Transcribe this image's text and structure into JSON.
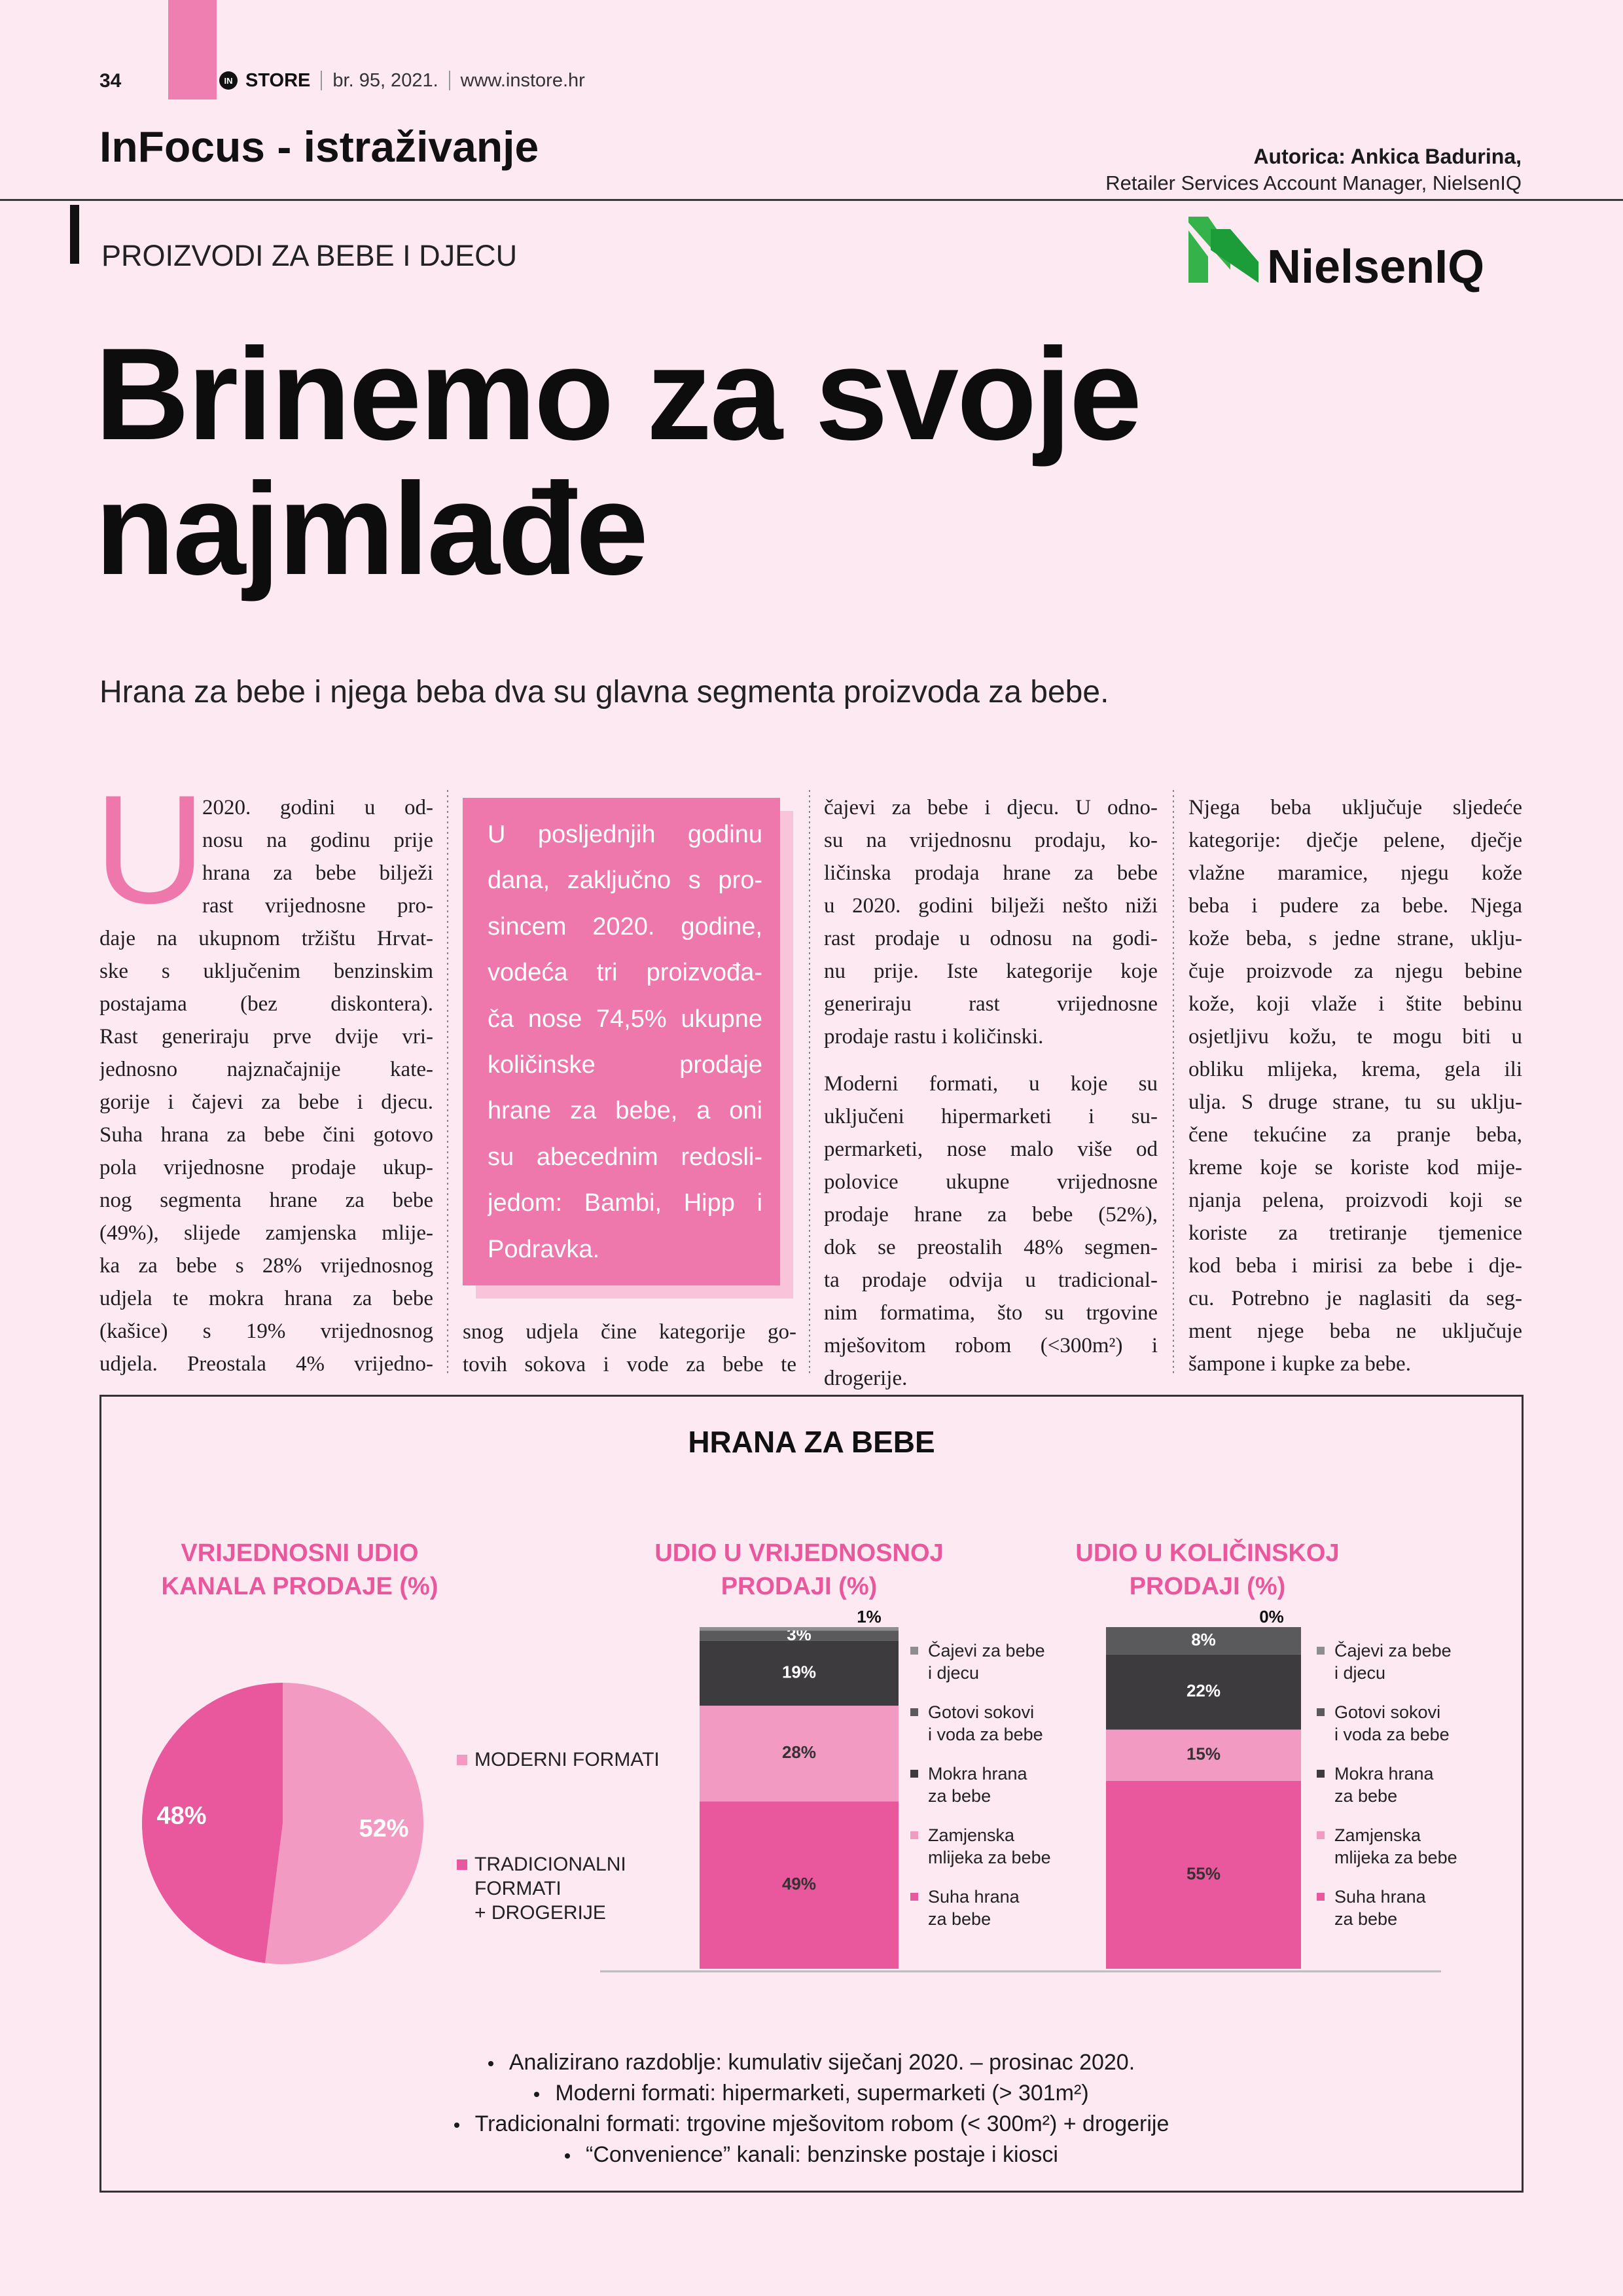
{
  "header": {
    "page_number": "34",
    "brand_mark": "IN",
    "brand": "STORE",
    "issue": "br. 95, 2021.",
    "website": "www.instore.hr",
    "section": "InFocus - istraživanje",
    "author": "Autorica: Ankica Badurina,",
    "author_role": "Retailer Services Account Manager, NielsenIQ",
    "category": "PROIZVODI ZA BEBE I DJECU",
    "logo": "NielsenIQ"
  },
  "article": {
    "title": "Brinemo za svoje\nnajmlađe",
    "lead": "Hrana za bebe i njega beba dva su glavna segmenta proizvoda za bebe.",
    "drop_cap": "U",
    "pull_quote": [
      "U posljednjih godinu",
      "dana, zaključno s pro-",
      "sincem 2020. godine,",
      "vodeća tri proizvođa-",
      "ča nose 74,5% ukupne",
      "količinske prodaje",
      "hrane za bebe, a oni",
      "su abecednim redosli-",
      "jedom: Bambi, Hipp i",
      "Podravka."
    ],
    "columns": [
      [
        [
          "2020. godini u od-",
          "nosu na godinu prije",
          "hrana za bebe bilježi",
          "rast vrijednosne pro-",
          "daje na ukupnom tržištu Hrvat-",
          "ske s uključenim benzinskim",
          "postajama (bez diskontera).",
          "Rast generiraju prve dvije vri-",
          "jednosno najznačajnije kate-",
          "gorije i čajevi za bebe i djecu.",
          "Suha hrana za bebe čini gotovo",
          "pola vrijednosne prodaje ukup-",
          "nog segmenta hrane za bebe",
          "(49%), slijede zamjenska mlije-",
          "ka za bebe s 28% vrijednosnog",
          "udjela te mokra hrana za bebe",
          "(kašice) s 19% vrijednosnog",
          "udjela. Preostala 4% vrijedno-"
        ]
      ],
      [
        [
          "snog udjela čine kategorije go-",
          "tovih sokova i vode za bebe te"
        ]
      ],
      [
        [
          "čajevi za bebe i djecu. U odno-",
          "su na vrijednosnu prodaju, ko-",
          "ličinska prodaja hrane za bebe",
          "u 2020. godini bilježi nešto niži",
          "rast prodaje u odnosu na godi-",
          "nu prije. Iste kategorije koje",
          "generiraju rast vrijednosne",
          "prodaje rastu i količinski."
        ],
        [
          "Moderni formati, u koje su",
          "uključeni hipermarketi i su-",
          "permarketi, nose malo više od",
          "polovice ukupne vrijednosne",
          "prodaje hrane za bebe (52%),",
          "dok se preostalih 48% segmen-",
          "ta prodaje odvija u tradicional-",
          "nim formatima, što su trgovine",
          "mješovitom robom (<300m²) i",
          "drogerije."
        ]
      ],
      [
        [
          "Njega beba uključuje sljedeće",
          "kategorije: dječje pelene, dječje",
          "vlažne maramice, njegu kože",
          "beba i pudere za bebe. Njega",
          "kože beba, s jedne strane, uklju-",
          "čuje proizvode za njegu bebine",
          "kože, koji vlaže i štite bebinu",
          "osjetljivu kožu, te mogu biti u",
          "obliku mlijeka, krema, gela ili",
          "ulja. S druge strane, tu su uklju-",
          "čene tekućine za pranje beba,",
          "kreme koje se koriste kod mije-",
          "njanja pelena, proizvodi koji se",
          "koriste za tretiranje tjemenice",
          "kod beba i mirisi za bebe i dje-",
          "cu. Potrebno je naglasiti da seg-",
          "ment njege beba ne uključuje",
          "šampone i kupke za bebe."
        ]
      ]
    ]
  },
  "chart_box": {
    "title": "HRANA ZA BEBE",
    "notes": [
      "Analizirano razdoblje: kumulativ siječanj 2020. – prosinac 2020.",
      "Moderni formati: hipermarketi, supermarketi (> 301m²)",
      "Tradicionalni formati: trgovine mješovitom robom (< 300m²) + drogerije",
      "“Convenience” kanali: benzinske postaje i kiosci"
    ]
  },
  "chart_data": [
    {
      "type": "pie",
      "title": "VRIJEDNOSNI UDIO\nKANALA PRODAJE (%)",
      "categories": [
        "MODERNI FORMATI",
        "TRADICIONALNI\nFORMATI\n+ DROGERIJE"
      ],
      "values": [
        52,
        48
      ],
      "value_labels": [
        "52%",
        "48%"
      ],
      "colors": [
        "#f29ac2",
        "#e9579d"
      ]
    },
    {
      "type": "bar",
      "stacked": true,
      "title": "UDIO U VRIJEDNOSNOJ\nPRODAJI (%)",
      "categories": [
        null
      ],
      "ylim": [
        0,
        100
      ],
      "series": [
        {
          "name": "Suha hrana\nza bebe",
          "color": "#e9579d",
          "values": [
            49
          ],
          "value_labels": [
            "49%"
          ]
        },
        {
          "name": "Zamjenska\nmlijeka za bebe",
          "color": "#f29ac2",
          "values": [
            28
          ],
          "value_labels": [
            "28%"
          ]
        },
        {
          "name": "Mokra hrana\nza bebe",
          "color": "#3d3b3e",
          "values": [
            19
          ],
          "value_labels": [
            "19%"
          ]
        },
        {
          "name": "Gotovi sokovi\ni voda za bebe",
          "color": "#5a595c",
          "values": [
            3
          ],
          "value_labels": [
            "3%"
          ]
        },
        {
          "name": "Čajevi za bebe\ni djecu",
          "color": "#8e8d90",
          "values": [
            1
          ],
          "value_labels": [
            "1%"
          ]
        }
      ]
    },
    {
      "type": "bar",
      "stacked": true,
      "title": "UDIO U KOLIČINSKOJ\nPRODAJI (%)",
      "categories": [
        null
      ],
      "ylim": [
        0,
        100
      ],
      "series": [
        {
          "name": "Suha hrana\nza bebe",
          "color": "#e9579d",
          "values": [
            55
          ],
          "value_labels": [
            "55%"
          ]
        },
        {
          "name": "Zamjenska\nmlijeka za bebe",
          "color": "#f29ac2",
          "values": [
            15
          ],
          "value_labels": [
            "15%"
          ]
        },
        {
          "name": "Mokra hrana\nza bebe",
          "color": "#3d3b3e",
          "values": [
            22
          ],
          "value_labels": [
            "22%"
          ]
        },
        {
          "name": "Gotovi sokovi\ni voda za bebe",
          "color": "#5a595c",
          "values": [
            8
          ],
          "value_labels": [
            "8%"
          ]
        },
        {
          "name": "Čajevi za bebe\ni djecu",
          "color": "#8e8d90",
          "values": [
            0
          ],
          "value_labels": [
            "0%"
          ]
        }
      ]
    }
  ]
}
